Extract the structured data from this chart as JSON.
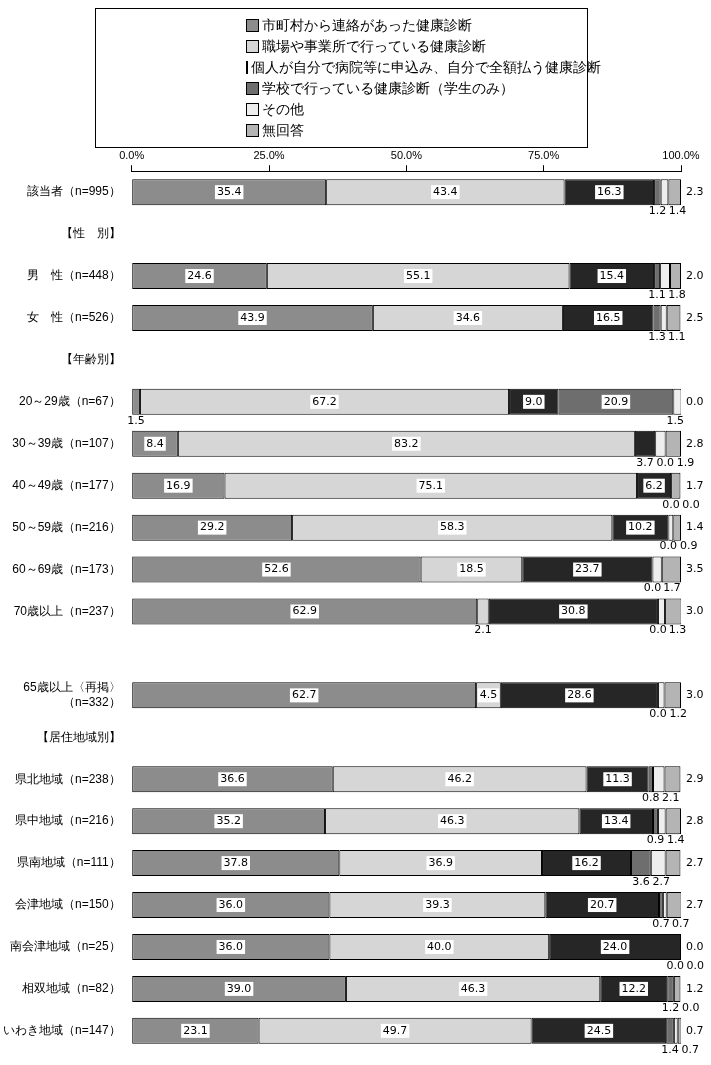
{
  "chart_data": {
    "type": "bar",
    "orientation": "horizontal",
    "stacked": true,
    "categories": [
      "該当者（n=995）",
      "【性　別】",
      "男　性（n=448）",
      "女　性（n=526）",
      "【年齢別】",
      "20～29歳（n=67）",
      "30～39歳（n=107）",
      "40～49歳（n=177）",
      "50～59歳（n=216）",
      "60～69歳（n=173）",
      "70歳以上（n=237）",
      null,
      "65歳以上〈再掲〉（n=332）",
      "【居住地域別】",
      "県北地域（n=238）",
      "県中地域（n=216）",
      "県南地域（n=111）",
      "会津地域（n=150）",
      "南会津地域（n=25）",
      "相双地域（n=82）",
      "いわき地域（n=147）"
    ],
    "series": [
      {
        "name": "市町村から連絡があった健康診断",
        "color": "#8c8c8c",
        "values": [
          35.4,
          null,
          24.6,
          43.9,
          null,
          1.5,
          8.4,
          16.9,
          29.2,
          52.6,
          62.9,
          null,
          62.7,
          null,
          36.6,
          35.2,
          37.8,
          36.0,
          36.0,
          39.0,
          23.1
        ],
        "value_labels": [
          "35.4",
          null,
          "24.6",
          "43.9",
          null,
          "1.5",
          "8.4",
          "16.9",
          "29.2",
          "52.6",
          "62.9",
          null,
          "62.7",
          null,
          "36.6",
          "35.2",
          "37.8",
          "36.0",
          "36.0",
          "39.0",
          "23.1"
        ]
      },
      {
        "name": "職場や事業所で行っている健康診断",
        "color": "#d6d6d6",
        "values": [
          43.4,
          null,
          55.1,
          34.6,
          null,
          67.2,
          83.2,
          75.1,
          58.3,
          18.5,
          2.1,
          null,
          4.5,
          null,
          46.2,
          46.3,
          36.9,
          39.3,
          40.0,
          46.3,
          49.7
        ],
        "value_labels": [
          "43.4",
          null,
          "55.1",
          "34.6",
          null,
          "67.2",
          "83.2",
          "75.1",
          "58.3",
          "18.5",
          "2.1",
          null,
          "4.5",
          null,
          "46.2",
          "46.3",
          "36.9",
          "39.3",
          "40.0",
          "46.3",
          "49.7"
        ]
      },
      {
        "name": "個人が自分で病院等に申込み、自分で全額払う健康診断",
        "color": "#262626",
        "values": [
          16.3,
          null,
          15.4,
          16.5,
          null,
          9.0,
          3.7,
          6.2,
          10.2,
          23.7,
          30.8,
          null,
          28.6,
          null,
          11.3,
          13.4,
          16.2,
          20.7,
          24.0,
          12.2,
          24.5
        ],
        "value_labels": [
          "16.3",
          null,
          "15.4",
          "16.5",
          null,
          "9.0",
          "3.7",
          "6.2",
          "10.2",
          "23.7",
          "30.8",
          null,
          "28.6",
          null,
          "11.3",
          "13.4",
          "16.2",
          "20.7",
          "24.0",
          "12.2",
          "24.5"
        ]
      },
      {
        "name": "学校で行っている健康診断（学生のみ）",
        "color": "#6e6e6e",
        "values": [
          1.2,
          null,
          1.1,
          1.3,
          null,
          20.9,
          0.0,
          0.0,
          0.0,
          0.0,
          0.0,
          null,
          0.0,
          null,
          0.8,
          0.9,
          3.6,
          0.7,
          0.0,
          1.2,
          1.4
        ],
        "value_labels": [
          "1.2",
          null,
          "1.1",
          "1.3",
          null,
          "20.9",
          "0.0",
          "0.0",
          "0.0",
          "0.0",
          "0.0",
          null,
          "0.0",
          null,
          "0.8",
          "0.9",
          "3.6",
          "0.7",
          "0.0",
          "1.2",
          "1.4"
        ]
      },
      {
        "name": "その他",
        "color": "#eeeeee",
        "values": [
          1.4,
          null,
          1.8,
          1.1,
          null,
          1.5,
          1.9,
          0.0,
          0.9,
          1.7,
          1.3,
          null,
          1.2,
          null,
          2.1,
          1.4,
          2.7,
          0.7,
          0.0,
          0.0,
          0.7
        ],
        "value_labels": [
          "1.4",
          null,
          "1.8",
          "1.1",
          null,
          "1.5",
          "1.9",
          "0.0",
          "0.9",
          "1.7",
          "1.3",
          null,
          "1.2",
          null,
          "2.1",
          "1.4",
          "2.7",
          "0.7",
          "0.0",
          "0.0",
          "0.7"
        ]
      },
      {
        "name": "無回答",
        "color": "#b4b4b4",
        "values": [
          2.3,
          null,
          2.0,
          2.5,
          null,
          0.0,
          2.8,
          1.7,
          1.4,
          3.5,
          3.0,
          null,
          3.0,
          null,
          2.9,
          2.8,
          2.7,
          2.7,
          0.0,
          1.2,
          0.7
        ],
        "value_labels": [
          "2.3",
          null,
          "2.0",
          "2.5",
          null,
          "0.0",
          "2.8",
          "1.7",
          "1.4",
          "3.5",
          "3.0",
          null,
          "3.0",
          null,
          "2.9",
          "2.8",
          "2.7",
          "2.7",
          "0.0",
          "1.2",
          "0.7"
        ]
      }
    ],
    "xlim": [
      0,
      100
    ],
    "xticks": [
      {
        "value": 0,
        "label": "0.0%"
      },
      {
        "value": 25,
        "label": "25.0%"
      },
      {
        "value": 50,
        "label": "50.0%"
      },
      {
        "value": 75,
        "label": "75.0%"
      },
      {
        "value": 100,
        "label": "100.0%"
      }
    ],
    "grid": false,
    "legend": "top"
  }
}
